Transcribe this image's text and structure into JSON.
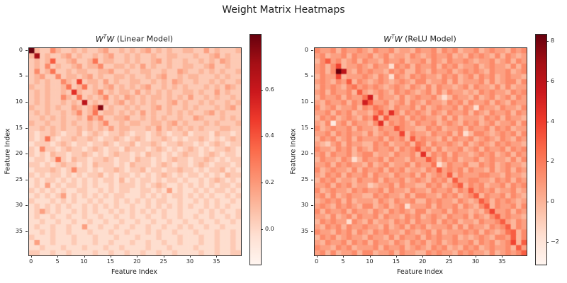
{
  "figure": {
    "suptitle": "Weight Matrix Heatmaps",
    "background": "#ffffff",
    "text_color": "#1a1a1a"
  },
  "colormap": {
    "name": "Reds",
    "stops": [
      "#fff5f0",
      "#fee0d2",
      "#fcbba1",
      "#fc9272",
      "#fb6a4a",
      "#ef3b2c",
      "#cb181d",
      "#a50f15",
      "#67000d"
    ]
  },
  "chart_data": [
    {
      "type": "heatmap",
      "title": {
        "w1": "W",
        "sup": "T",
        "w2": "W",
        "rest": " (Linear Model)"
      },
      "xlabel": "Feature Index",
      "ylabel": "Feature Index",
      "size": 40,
      "x_ticks": [
        0,
        5,
        10,
        15,
        20,
        25,
        30,
        35
      ],
      "y_ticks": [
        0,
        5,
        10,
        15,
        20,
        25,
        30,
        35
      ],
      "colorbar": {
        "vmin": -0.15,
        "vmax": 0.84,
        "ticks": [
          {
            "label": "0.6",
            "value": 0.6
          },
          {
            "label": "0.4",
            "value": 0.4
          },
          {
            "label": "0.2",
            "value": 0.2
          },
          {
            "label": "0.0",
            "value": 0.0
          }
        ]
      },
      "encoding": "each cell is one hex digit 0-f; value fraction t = digit/15 of colormap range",
      "cells": [
        "f4336433434334533434345343433443353433 34",
        "4d343345343343453343433433443334334534 33",
        "3434833453347344334343345343343343435 43",
        "3436343345344633443435343343344334533433",
        "3634733434433445334334433433543343434334",
        "3453363443453433443433434533434433343433",
        "3434336439344353433443343435433433434334",
        "4334334734734345343434533434343334343543",
        "34343343a433463434435343434334434335343 3",
        "3434336437343463435434344343435334343343",
        "3434334343c343434534343433453433434334 34",
        "4334343354346e3433434334534334343334345 3",
        "3434334346347344343435343343434334534333",
        "3343434334364633445334343433433543334343",
        "4334334343343463343443344345343334343334",
        "3343434334343435344333435343434343334433",
        "3233432334234323343233234323342333243323",
        "3237323343343233432343233432323343232343",
        "2333234323323343233423343233433232343233",
        "3263323433234323324333234323234323233432",
        "3232433233432323433232433232343323432332",
        "2332373243323343233243323234332334323233",
        "3323234332324333232433323432332343233323",
        "2333432363323233432334233233433232334232",
        "3232332323233423233232323432323323232433",
        "2323323232323233242323323233232232343232",
        "2325232332323223233323234322323232323323",
        "3232323223322323233223323252322323233232",
        "2323235232323232332223232323323232322323",
        "3222323232232322323232323322322323232232",
        "2323232322323232322322323232323223232322",
        "2353232232323223232323232322322232323223",
        "2322322322322322322322322322322322322323",
        "2232232232232232232232232232232232232232",
        "2322322322522322322322322322323223223222",
        "2232322322232223223222323223222322232232",
        "3222322232223222322232223222322232232232",
        "2522322232223223222322322322322232232232",
        "2232223222322232232222322232222322232232",
        "3322322322223223223223223223222232232233"
      ]
    },
    {
      "type": "heatmap",
      "title": {
        "w1": "W",
        "sup": "T",
        "w2": "W",
        "rest": " (ReLU Model)"
      },
      "xlabel": "Feature Index",
      "ylabel": "Feature Index",
      "size": 40,
      "x_ticks": [
        0,
        5,
        10,
        15,
        20,
        25,
        30,
        35
      ],
      "y_ticks": [
        0,
        5,
        10,
        15,
        20,
        25,
        30,
        35
      ],
      "colorbar": {
        "vmin": -3.1,
        "vmax": 8.35,
        "ticks": [
          {
            "label": "8",
            "value": 8
          },
          {
            "label": "6",
            "value": 6
          },
          {
            "label": "4",
            "value": 4
          },
          {
            "label": "2",
            "value": 2
          },
          {
            "label": "0",
            "value": 0
          },
          {
            "label": "−2",
            "value": -2
          }
        ]
      },
      "encoding": "each cell is one hex digit 0-f; value fraction t = digit/15 of colormap range",
      "cells": [
        "6556465565465564554655646564556456554656",
        "5645564655645645546545655645465654646545",
        "4685645646554655645564654655654556456465",
        "5646945565465526564655646564556456554646",
        "5646fc54656554656446546556456565465564 56",
        "4655945556546526546565546564564656456554",
        "5654658465456545654664556464555646456646",
        "4656546756565456546546465545646554646455",
        "5646556485456546565456464655454656554656",
        "4655646557b46554645655642465546456456465",
        "546556465b855645646546554656465564654655",
        "6456455646576546556464565564652655465546",
        "55646564554685a646565465465564654655646 5",
        "4656456546594855646565546464555465646554",
        "546156465546a465654655645654656456455646",
        "6456556465546558655446564556465564656455",
        "5564656554645655946554655646246654565646",
        "4656456465556465648565546465564565465465",
        "5435646554465645564764655654645654656554",
        "6554656465465564656856464556456465564656",
        "56465564566455465564a465646554565645646 5",
        "4655465246556465546558646564556456554646",
        "5564656554645645564655724655644656456554",
        "6456554646556465645546585656465546456465",
        "5465646556465546556464565846555665546554",
        "4656455465564655645654656485566554656465",
        "5564656455345564655446564568465645564656",
        "6456554656556465546554655646585656455645",
        "5646456554465655464665546564568465564654",
        "4565646455546546556446565546545864656545",
        "5654656546645645625556465564654684655646",
        "6465564655465465654664556465545469556465",
        "5546456465564655465645654655646546856554",
        "4656552654645546564655646564554655685465",
        "5465646556554645646564555646465546568465",
        "6554656465465655465456464555656465457846",
        "4656456554655464655646565564545654665846",
        "5465564656465546546564564565564656456948",
        "6554656455564655645654656454656456556485",
        "5646455646645564655446565546565546456568"
      ]
    }
  ]
}
